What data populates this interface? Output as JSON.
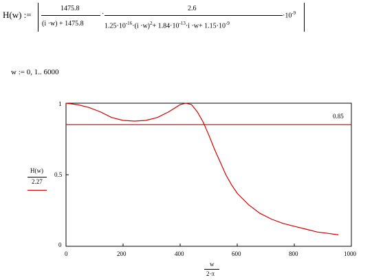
{
  "formula": {
    "lhs": "H(w) :=",
    "num1": "1475.8",
    "den1": "(i ·w) + 1475.8",
    "dot1": "·",
    "num2": "2.6",
    "den2_a": "1.25·10",
    "den2_a_exp": "-16",
    "den2_b": "·(i ·w)",
    "den2_b_exp": "2",
    "den2_c": "+ 1.84·10",
    "den2_c_exp": "-13",
    "den2_d": "·i ·w+ 1.15·10",
    "den2_d_exp": "-9",
    "tail": "·10",
    "tail_exp": "-9"
  },
  "range_def": "w := 0, 1.. 6000",
  "plot": {
    "y_label_num": "H(w)",
    "y_label_den": "2.27",
    "x_label_num": "w",
    "x_label_den": "2·π",
    "marker_label": "0.85",
    "y_ticks": [
      "0",
      "0.5",
      "1"
    ],
    "x_ticks": [
      "0",
      "200",
      "400",
      "600",
      "800",
      "1000"
    ],
    "colors": {
      "trace": "#cc0000",
      "axis": "#000000"
    }
  },
  "chart_data": {
    "type": "line",
    "xlabel": "w / 2·π",
    "ylabel": "H(w) / 2.27",
    "xlim": [
      0,
      1000
    ],
    "ylim": [
      0,
      1
    ],
    "grid": false,
    "series": [
      {
        "x": [
          0,
          40,
          80,
          120,
          160,
          200,
          240,
          280,
          320,
          360,
          400,
          420,
          440,
          460,
          480,
          500,
          520,
          540,
          560,
          580,
          600,
          640,
          680,
          720,
          760,
          800,
          840,
          880,
          920,
          955
        ],
        "y": [
          1.0,
          0.99,
          0.97,
          0.94,
          0.9,
          0.88,
          0.875,
          0.88,
          0.9,
          0.94,
          0.99,
          1.0,
          0.99,
          0.94,
          0.87,
          0.78,
          0.68,
          0.59,
          0.5,
          0.43,
          0.37,
          0.29,
          0.23,
          0.19,
          0.16,
          0.14,
          0.12,
          0.1,
          0.09,
          0.08
        ]
      },
      {
        "name": "0.85",
        "x": [
          0,
          1000
        ],
        "y": [
          0.85,
          0.85
        ]
      }
    ]
  }
}
